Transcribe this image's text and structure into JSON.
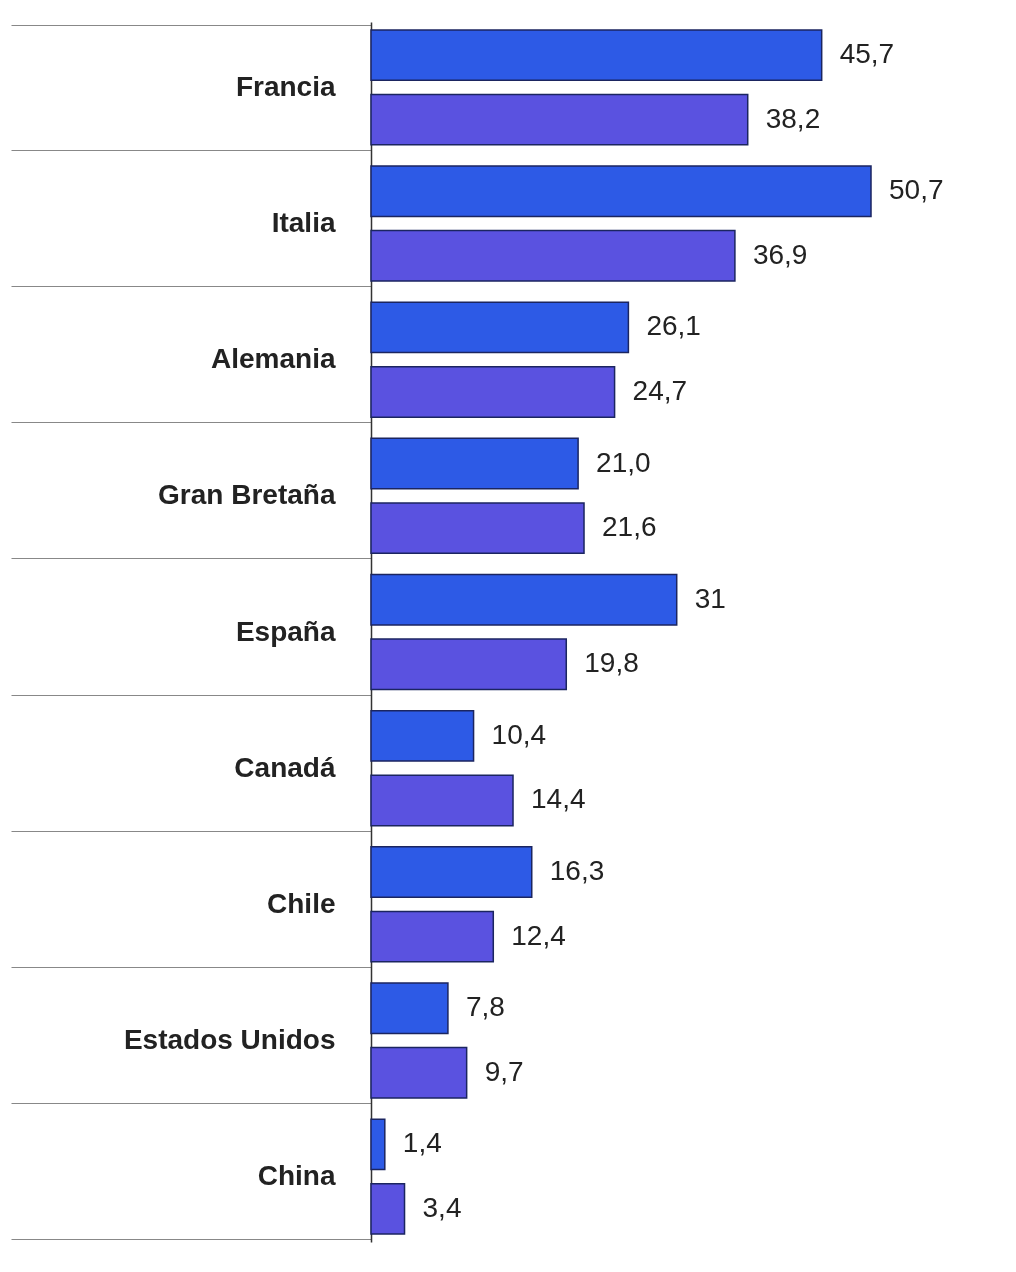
{
  "chart_data": {
    "type": "bar",
    "orientation": "horizontal",
    "legend": false,
    "grid": false,
    "categories": [
      "Francia",
      "Italia",
      "Alemania",
      "Gran Bretaña",
      "España",
      "Canadá",
      "Chile",
      "Estados Unidos",
      "China"
    ],
    "series": [
      {
        "color": "#2d5ae6",
        "values": [
          45.7,
          50.7,
          26.1,
          21.0,
          31,
          10.4,
          16.3,
          7.8,
          1.4
        ],
        "value_labels": [
          "45,7",
          "50,7",
          "26,1",
          "21,0",
          "31",
          "10,4",
          "16,3",
          "7,8",
          "1,4"
        ]
      },
      {
        "color": "#5a52e0",
        "values": [
          38.2,
          36.9,
          24.7,
          21.6,
          19.8,
          14.4,
          12.4,
          9.7,
          3.4
        ],
        "value_labels": [
          "38,2",
          "36,9",
          "24,7",
          "21,6",
          "19,8",
          "14,4",
          "12,4",
          "9,7",
          "3,4"
        ]
      }
    ]
  }
}
